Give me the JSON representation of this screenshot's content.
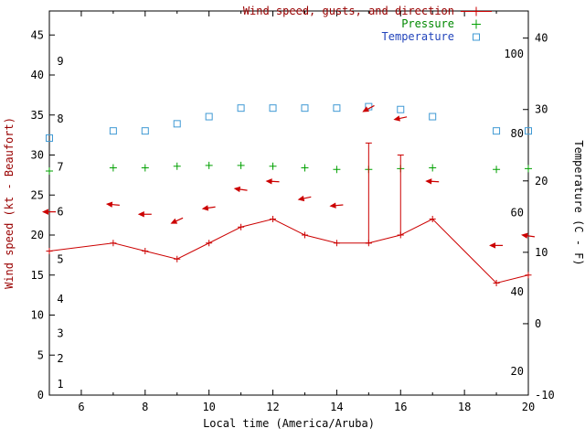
{
  "colors": {
    "wind": "#cc0000",
    "wind_text": "#990000",
    "pressure": "#00a000",
    "pressure_text": "#008800",
    "temperature": "#3f99d4",
    "temperature_text": "#2244bb",
    "axis_text": "#000000",
    "border": "#000000"
  },
  "axes": {
    "x_title": "Local time (America/Aruba)",
    "y_left_title": "Wind speed (kt - Beaufort)",
    "y_right_title": "Temperature (C - F)"
  },
  "legend": {
    "position": "top-right",
    "entries": [
      {
        "label": "Wind speed, gusts, and direction",
        "marker": "errorbar-line",
        "color": "#cc0000",
        "text_color": "#990000"
      },
      {
        "label": "Pressure",
        "marker": "plus",
        "color": "#00a000",
        "text_color": "#008800"
      },
      {
        "label": "Temperature",
        "marker": "open-square",
        "color": "#3f99d4",
        "text_color": "#2244bb"
      }
    ]
  },
  "chart_data": {
    "type": "line",
    "title": "",
    "xlabel": "Local time (America/Aruba)",
    "ylabel_left": "Wind speed (kt - Beaufort)",
    "ylabel_right": "Temperature (C - F)",
    "grid": false,
    "x_range": [
      5,
      20
    ],
    "x_ticks": [
      6,
      8,
      10,
      12,
      14,
      16,
      18,
      20
    ],
    "x_minor_ticks": [
      5,
      7,
      9,
      11,
      13,
      15,
      17,
      19
    ],
    "left_axis": {
      "units": "kt",
      "bottom_kt": 0,
      "top_kt": 48,
      "ticks": [
        0,
        5,
        10,
        15,
        20,
        25,
        30,
        35,
        40,
        45
      ]
    },
    "beaufort_labels": [
      {
        "bft": 1,
        "kt": 1.4
      },
      {
        "bft": 2,
        "kt": 4.6
      },
      {
        "bft": 3,
        "kt": 7.7
      },
      {
        "bft": 4,
        "kt": 12
      },
      {
        "bft": 5,
        "kt": 17
      },
      {
        "bft": 6,
        "kt": 22.9
      },
      {
        "bft": 7,
        "kt": 28.5
      },
      {
        "bft": 8,
        "kt": 34.5
      },
      {
        "bft": 9,
        "kt": 41.7
      }
    ],
    "right_axis_c": {
      "units": "C",
      "bottom_c": -10,
      "top_c": 43.8,
      "ticks": [
        -10,
        0,
        10,
        20,
        30,
        40
      ]
    },
    "right_axis_f_labels": [
      20,
      40,
      60,
      80,
      100
    ],
    "hours": [
      5,
      7,
      8,
      9,
      10,
      11,
      12,
      13,
      14,
      15,
      16,
      17,
      19,
      20
    ],
    "series": {
      "wind_speed_kt": [
        18,
        19,
        18,
        17,
        19,
        21,
        22,
        20,
        19,
        19,
        20,
        22,
        14,
        15
      ],
      "wind_gust_kt": [
        18,
        19,
        18,
        17,
        19,
        21,
        22,
        20,
        19,
        31.5,
        30,
        22,
        14,
        15
      ],
      "pressure_plotted_kt": [
        28.0,
        28.4,
        28.4,
        28.6,
        28.7,
        28.7,
        28.6,
        28.4,
        28.2,
        28.2,
        28.3,
        28.4,
        28.2,
        28.3
      ],
      "temperature_c": [
        26,
        27,
        27,
        28,
        29,
        30.2,
        30.2,
        30.2,
        30.2,
        30.4,
        30,
        29,
        27,
        27
      ]
    },
    "wind_direction_arrows": [
      {
        "hour": 5,
        "kt": 22.9,
        "angle": 0
      },
      {
        "hour": 7,
        "kt": 23.8,
        "angle": 5
      },
      {
        "hour": 8,
        "kt": 22.6,
        "angle": 0
      },
      {
        "hour": 9,
        "kt": 21.8,
        "angle": -25
      },
      {
        "hour": 10,
        "kt": 23.4,
        "angle": -8
      },
      {
        "hour": 11,
        "kt": 25.7,
        "angle": 8
      },
      {
        "hour": 12,
        "kt": 26.7,
        "angle": 3
      },
      {
        "hour": 13,
        "kt": 24.6,
        "angle": -12
      },
      {
        "hour": 14,
        "kt": 23.7,
        "angle": -5
      },
      {
        "hour": 15,
        "kt": 35.8,
        "angle": -28
      },
      {
        "hour": 16,
        "kt": 34.6,
        "angle": -12
      },
      {
        "hour": 17,
        "kt": 26.7,
        "angle": 3
      },
      {
        "hour": 19,
        "kt": 18.7,
        "angle": 0
      },
      {
        "hour": 20,
        "kt": 19.9,
        "angle": 8
      }
    ]
  }
}
